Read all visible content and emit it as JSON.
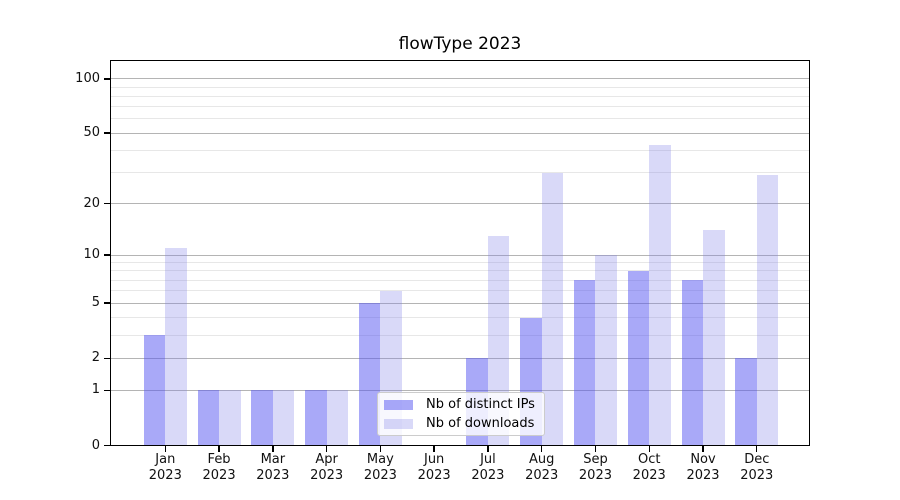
{
  "chart_data": {
    "type": "bar",
    "title": "flowType 2023",
    "categories": [
      "Jan",
      "Feb",
      "Mar",
      "Apr",
      "May",
      "Jun",
      "Jul",
      "Aug",
      "Sep",
      "Oct",
      "Nov",
      "Dec"
    ],
    "year": "2023",
    "series": [
      {
        "name": "Nb of distinct IPs",
        "values": [
          3,
          1,
          1,
          1,
          5,
          0,
          2,
          4,
          7,
          8,
          7,
          2
        ],
        "color_on_white": "#a9a9f8",
        "fill": "rgba(83,83,241,0.5)"
      },
      {
        "name": "Nb of downloads",
        "values": [
          11,
          1,
          1,
          1,
          6,
          0,
          13,
          30,
          10,
          43,
          14,
          29
        ],
        "color_on_white": "#d9d9f8",
        "fill": "rgba(128,128,231,0.3)"
      }
    ],
    "y_axis": {
      "scale": "log1p",
      "major_ticks": [
        0,
        1,
        2,
        5,
        10,
        20,
        50,
        100
      ],
      "minor_ticks": [
        3,
        4,
        6,
        7,
        8,
        9,
        30,
        40,
        60,
        70,
        80,
        90
      ],
      "range": [
        0,
        127
      ]
    },
    "x_axis": {
      "tick_label_lines": 2
    },
    "legend": {
      "position": "lower center"
    },
    "grid": true,
    "colors": {
      "grid_major": "#b4b4b4",
      "grid_minor": "#e7e7e7",
      "axis": "#000000",
      "background": "#ffffff"
    }
  }
}
